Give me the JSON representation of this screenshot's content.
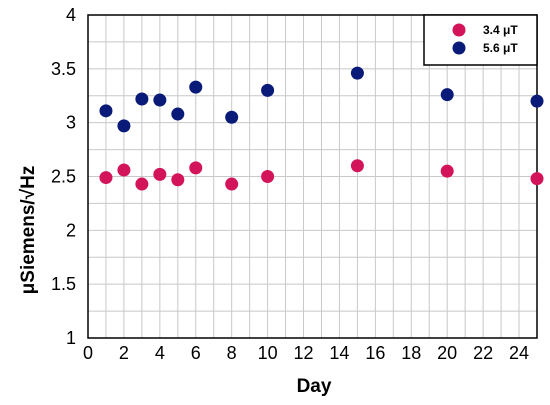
{
  "chart_data": {
    "type": "scatter",
    "xlabel": "Day",
    "ylabel": "μSiemens/√Hz",
    "xlim": [
      0,
      25
    ],
    "ylim": [
      1,
      4
    ],
    "xticks": [
      "0",
      "2",
      "4",
      "6",
      "8",
      "10",
      "12",
      "14",
      "16",
      "18",
      "20",
      "22",
      "24"
    ],
    "yticks": [
      "1",
      "1.5",
      "2",
      "2.5",
      "3",
      "3.5",
      "4"
    ],
    "grid": true,
    "legend_position": "top-right",
    "series": [
      {
        "name": "3.4 μT",
        "color": "#d4145a",
        "points": [
          {
            "x": 1,
            "y": 2.49
          },
          {
            "x": 2,
            "y": 2.56
          },
          {
            "x": 3,
            "y": 2.43
          },
          {
            "x": 4,
            "y": 2.52
          },
          {
            "x": 5,
            "y": 2.47
          },
          {
            "x": 6,
            "y": 2.58
          },
          {
            "x": 8,
            "y": 2.43
          },
          {
            "x": 10,
            "y": 2.5
          },
          {
            "x": 15,
            "y": 2.6
          },
          {
            "x": 20,
            "y": 2.55
          },
          {
            "x": 25,
            "y": 2.48
          }
        ]
      },
      {
        "name": "5.6 μT",
        "color": "#0a1a78",
        "points": [
          {
            "x": 1,
            "y": 3.11
          },
          {
            "x": 2,
            "y": 2.97
          },
          {
            "x": 3,
            "y": 3.22
          },
          {
            "x": 4,
            "y": 3.21
          },
          {
            "x": 5,
            "y": 3.08
          },
          {
            "x": 6,
            "y": 3.33
          },
          {
            "x": 8,
            "y": 3.05
          },
          {
            "x": 10,
            "y": 3.3
          },
          {
            "x": 15,
            "y": 3.46
          },
          {
            "x": 20,
            "y": 3.26
          },
          {
            "x": 25,
            "y": 3.2
          }
        ]
      }
    ]
  }
}
